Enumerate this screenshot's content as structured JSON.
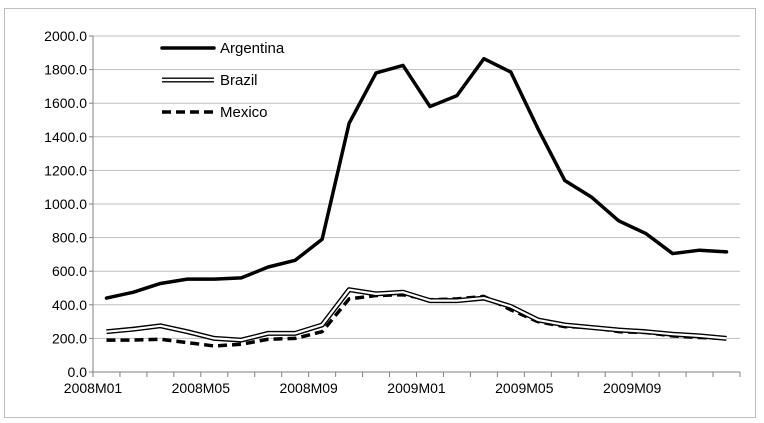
{
  "chart_data": {
    "type": "line",
    "title": "",
    "xlabel": "",
    "ylabel": "",
    "ylim": [
      0,
      2000
    ],
    "y_ticks": [
      "0.0",
      "200.0",
      "400.0",
      "600.0",
      "800.0",
      "1000.0",
      "1200.0",
      "1400.0",
      "1600.0",
      "1800.0",
      "2000.0"
    ],
    "x_tick_labels": [
      {
        "label": "2008M01",
        "index": 0
      },
      {
        "label": "2008M05",
        "index": 4
      },
      {
        "label": "2008M09",
        "index": 8
      },
      {
        "label": "2009M01",
        "index": 12
      },
      {
        "label": "2009M05",
        "index": 16
      },
      {
        "label": "2009M09",
        "index": 20
      }
    ],
    "x": [
      "2008M01",
      "2008M02",
      "2008M03",
      "2008M04",
      "2008M05",
      "2008M06",
      "2008M07",
      "2008M08",
      "2008M09",
      "2008M10",
      "2008M11",
      "2008M12",
      "2009M01",
      "2009M02",
      "2009M03",
      "2009M04",
      "2009M05",
      "2009M06",
      "2009M07",
      "2009M08",
      "2009M09",
      "2009M10",
      "2009M11",
      "2009M12"
    ],
    "grid": "horizontal",
    "legend_position": "top-left",
    "series": [
      {
        "name": "Argentina",
        "style": "solid-thick",
        "color": "#000000",
        "values": [
          440,
          475,
          527,
          553,
          553,
          560,
          625,
          665,
          790,
          1480,
          1780,
          1825,
          1580,
          1645,
          1865,
          1785,
          1450,
          1140,
          1040,
          900,
          825,
          705,
          725,
          715
        ]
      },
      {
        "name": "Brazil",
        "style": "double",
        "color": "#000000",
        "values": [
          240,
          255,
          275,
          240,
          200,
          190,
          230,
          230,
          280,
          490,
          465,
          475,
          425,
          425,
          440,
          390,
          310,
          280,
          265,
          250,
          240,
          225,
          215,
          200
        ]
      },
      {
        "name": "Mexico",
        "style": "dashed",
        "color": "#000000",
        "values": [
          190,
          190,
          195,
          175,
          155,
          165,
          195,
          200,
          240,
          435,
          455,
          460,
          430,
          435,
          450,
          370,
          300,
          270,
          265,
          240,
          235,
          215,
          205,
          200
        ]
      }
    ]
  }
}
